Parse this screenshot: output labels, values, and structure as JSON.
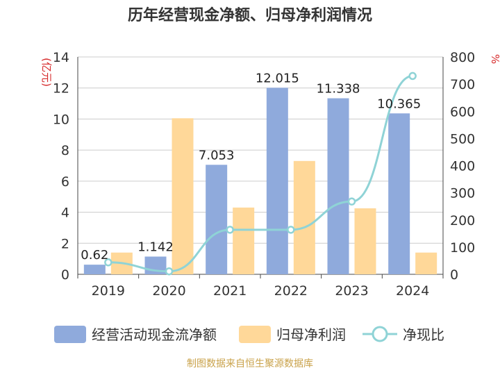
{
  "chart_data": {
    "type": "bar",
    "title": "历年经营现金净额、归母净利润情况",
    "categories": [
      "2019",
      "2020",
      "2021",
      "2022",
      "2023",
      "2024"
    ],
    "left_axis": {
      "unit": "(亿元)",
      "ylim": [
        0,
        14
      ],
      "ticks": [
        "0",
        "2",
        "4",
        "6",
        "8",
        "10",
        "12",
        "14"
      ]
    },
    "right_axis": {
      "unit": "%",
      "ylim": [
        0,
        800
      ],
      "ticks": [
        "0",
        "100",
        "200",
        "300",
        "400",
        "500",
        "600",
        "700",
        "800"
      ]
    },
    "series": [
      {
        "name": "经营活动现金流净额",
        "type": "bar",
        "axis": "left",
        "color": "#8faadc",
        "values": [
          0.62,
          1.142,
          7.053,
          12.015,
          11.338,
          10.365
        ],
        "labels": [
          "0.62",
          "1.142",
          "7.053",
          "12.015",
          "11.338",
          "10.365"
        ]
      },
      {
        "name": "归母净利润",
        "type": "bar",
        "axis": "left",
        "color": "#ffd899",
        "values": [
          1.4,
          10.05,
          4.3,
          7.3,
          4.25,
          1.4
        ]
      },
      {
        "name": "净现比",
        "type": "line",
        "axis": "right",
        "color": "#8fd3d6",
        "values": [
          44,
          11,
          164,
          164,
          268,
          730
        ]
      }
    ],
    "grid": true,
    "legend": "bottom"
  },
  "footer": {
    "source": "制图数据来自恒生聚源数据库"
  }
}
